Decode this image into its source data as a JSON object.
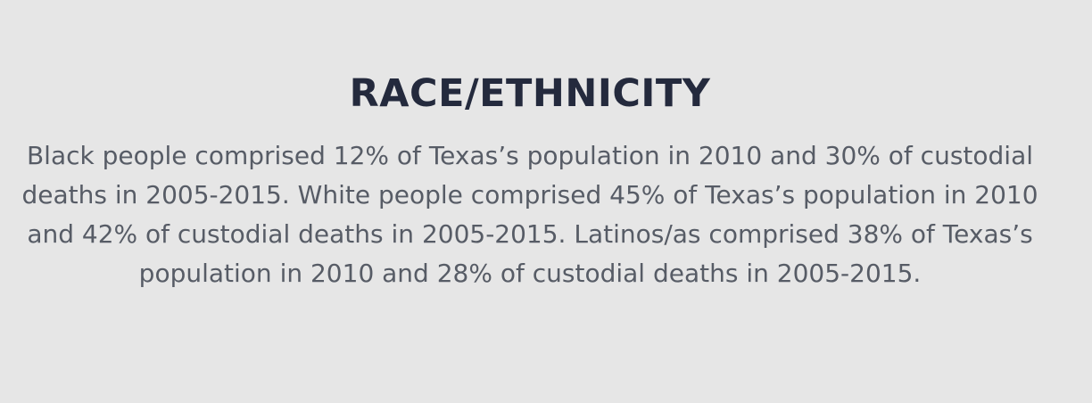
{
  "section": {
    "title": "RACE/ETHNICITY",
    "paragraph": "Black people comprised 12% of Texas’s population in 2010 and 30% of custodial deaths in 2005-2015. White people comprised 45% of Texas’s population in 2010 and 42% of custodial deaths in 2005-2015. Latinos/as comprised 38% of Texas’s population in 2010 and 28% of custodial deaths in 2005-2015."
  },
  "colors": {
    "background": "#e6e6e6",
    "title": "#242a3d",
    "body": "#575c66"
  }
}
